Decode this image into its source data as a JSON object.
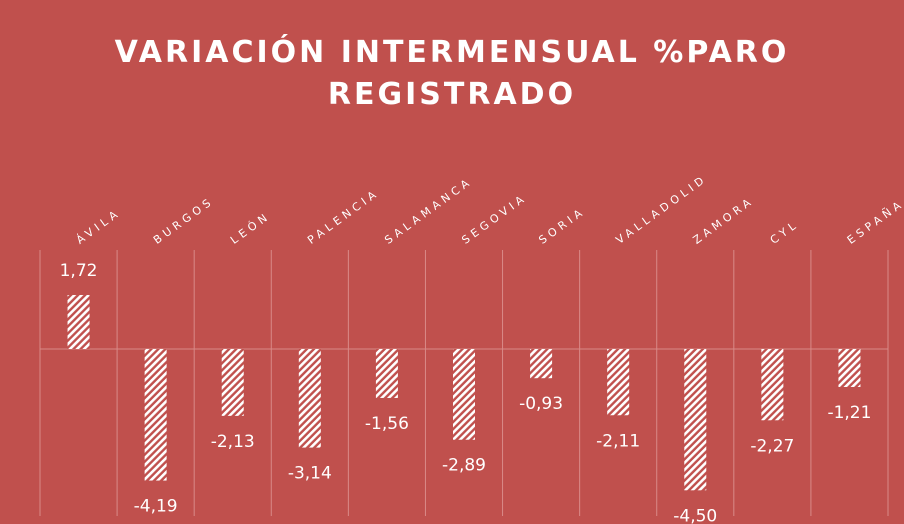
{
  "chart_data": {
    "type": "bar",
    "title": "VARIACIÓN INTERMENSUAL %PARO REGISTRADO",
    "categories": [
      "ÁVILA",
      "BURGOS",
      "LEÓN",
      "PALENCIA",
      "SALAMANCA",
      "SEGOVIA",
      "SORIA",
      "VALLADOLID",
      "ZAMORA",
      "CYL",
      "ESPAÑA"
    ],
    "values": [
      1.72,
      -4.19,
      -2.13,
      -3.14,
      -1.56,
      -2.89,
      -0.93,
      -2.11,
      -4.5,
      -2.27,
      -1.21
    ],
    "value_labels": [
      "1,72",
      "-4,19",
      "-2,13",
      "-3,14",
      "-1,56",
      "-2,89",
      "-0,93",
      "-2,11",
      "-4,50",
      "-2,27",
      "-1,21"
    ],
    "color": "#ffffff",
    "background": "#c0504d"
  }
}
